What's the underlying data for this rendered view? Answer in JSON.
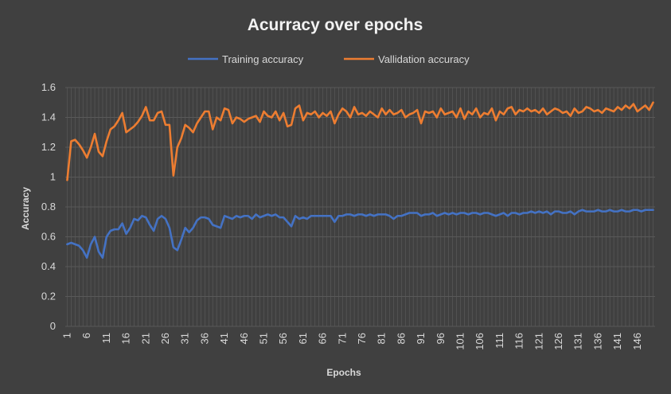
{
  "chart_data": {
    "type": "line",
    "title": "Acurracy over epochs",
    "xlabel": "Epochs",
    "ylabel": "Accuracy",
    "ylim": [
      0,
      1.6
    ],
    "yticks": [
      "0",
      "0.2",
      "0.4",
      "0.6",
      "0.8",
      "1",
      "1.2",
      "1.4",
      "1.6"
    ],
    "xticks": [
      "1",
      "6",
      "11",
      "16",
      "21",
      "26",
      "31",
      "36",
      "41",
      "46",
      "51",
      "56",
      "61",
      "66",
      "71",
      "76",
      "81",
      "86",
      "91",
      "96",
      "101",
      "106",
      "111",
      "116",
      "121",
      "126",
      "131",
      "136",
      "141",
      "146"
    ],
    "grid": true,
    "legend_position": "top",
    "x": [
      1,
      2,
      3,
      4,
      5,
      6,
      7,
      8,
      9,
      10,
      11,
      12,
      13,
      14,
      15,
      16,
      17,
      18,
      19,
      20,
      21,
      22,
      23,
      24,
      25,
      26,
      27,
      28,
      29,
      30,
      31,
      32,
      33,
      34,
      35,
      36,
      37,
      38,
      39,
      40,
      41,
      42,
      43,
      44,
      45,
      46,
      47,
      48,
      49,
      50,
      51,
      52,
      53,
      54,
      55,
      56,
      57,
      58,
      59,
      60,
      61,
      62,
      63,
      64,
      65,
      66,
      67,
      68,
      69,
      70,
      71,
      72,
      73,
      74,
      75,
      76,
      77,
      78,
      79,
      80,
      81,
      82,
      83,
      84,
      85,
      86,
      87,
      88,
      89,
      90,
      91,
      92,
      93,
      94,
      95,
      96,
      97,
      98,
      99,
      100,
      101,
      102,
      103,
      104,
      105,
      106,
      107,
      108,
      109,
      110,
      111,
      112,
      113,
      114,
      115,
      116,
      117,
      118,
      119,
      120,
      121,
      122,
      123,
      124,
      125,
      126,
      127,
      128,
      129,
      130,
      131,
      132,
      133,
      134,
      135,
      136,
      137,
      138,
      139,
      140,
      141,
      142,
      143,
      144,
      145,
      146,
      147,
      148,
      149,
      150
    ],
    "series": [
      {
        "name": "Training accuracy",
        "color": "#4472c4",
        "values": [
          0.55,
          0.56,
          0.55,
          0.54,
          0.51,
          0.46,
          0.55,
          0.6,
          0.5,
          0.46,
          0.6,
          0.64,
          0.65,
          0.65,
          0.69,
          0.62,
          0.66,
          0.72,
          0.71,
          0.74,
          0.73,
          0.68,
          0.64,
          0.72,
          0.74,
          0.72,
          0.66,
          0.53,
          0.51,
          0.58,
          0.66,
          0.63,
          0.66,
          0.71,
          0.73,
          0.73,
          0.72,
          0.68,
          0.67,
          0.66,
          0.74,
          0.73,
          0.72,
          0.74,
          0.73,
          0.74,
          0.74,
          0.72,
          0.75,
          0.73,
          0.74,
          0.75,
          0.74,
          0.75,
          0.73,
          0.73,
          0.7,
          0.67,
          0.74,
          0.72,
          0.73,
          0.72,
          0.74,
          0.74,
          0.74,
          0.74,
          0.74,
          0.74,
          0.7,
          0.74,
          0.74,
          0.75,
          0.75,
          0.74,
          0.75,
          0.75,
          0.74,
          0.75,
          0.74,
          0.75,
          0.75,
          0.75,
          0.74,
          0.72,
          0.74,
          0.74,
          0.75,
          0.76,
          0.76,
          0.76,
          0.74,
          0.75,
          0.75,
          0.76,
          0.74,
          0.75,
          0.76,
          0.75,
          0.76,
          0.75,
          0.76,
          0.76,
          0.75,
          0.76,
          0.76,
          0.75,
          0.76,
          0.76,
          0.75,
          0.74,
          0.75,
          0.76,
          0.74,
          0.76,
          0.76,
          0.75,
          0.76,
          0.76,
          0.77,
          0.76,
          0.77,
          0.76,
          0.77,
          0.75,
          0.77,
          0.77,
          0.76,
          0.76,
          0.77,
          0.75,
          0.77,
          0.78,
          0.77,
          0.77,
          0.77,
          0.78,
          0.77,
          0.77,
          0.78,
          0.77,
          0.77,
          0.78,
          0.77,
          0.77,
          0.78,
          0.78,
          0.77,
          0.78,
          0.78,
          0.78
        ]
      },
      {
        "name": "Vallidation accuracy",
        "color": "#ed7d31",
        "values": [
          0.98,
          1.24,
          1.25,
          1.22,
          1.18,
          1.13,
          1.2,
          1.29,
          1.17,
          1.14,
          1.24,
          1.32,
          1.34,
          1.38,
          1.43,
          1.3,
          1.32,
          1.34,
          1.37,
          1.41,
          1.47,
          1.38,
          1.38,
          1.43,
          1.44,
          1.35,
          1.35,
          1.01,
          1.2,
          1.26,
          1.35,
          1.33,
          1.3,
          1.36,
          1.4,
          1.44,
          1.44,
          1.32,
          1.4,
          1.38,
          1.46,
          1.45,
          1.36,
          1.4,
          1.39,
          1.37,
          1.39,
          1.4,
          1.41,
          1.37,
          1.44,
          1.41,
          1.4,
          1.44,
          1.38,
          1.43,
          1.34,
          1.35,
          1.46,
          1.48,
          1.38,
          1.43,
          1.42,
          1.44,
          1.4,
          1.43,
          1.41,
          1.44,
          1.36,
          1.42,
          1.46,
          1.44,
          1.4,
          1.47,
          1.42,
          1.43,
          1.41,
          1.44,
          1.42,
          1.4,
          1.46,
          1.42,
          1.45,
          1.42,
          1.43,
          1.45,
          1.4,
          1.42,
          1.43,
          1.45,
          1.36,
          1.44,
          1.43,
          1.44,
          1.4,
          1.46,
          1.42,
          1.43,
          1.44,
          1.4,
          1.46,
          1.39,
          1.44,
          1.42,
          1.46,
          1.4,
          1.43,
          1.42,
          1.46,
          1.38,
          1.44,
          1.42,
          1.46,
          1.47,
          1.42,
          1.45,
          1.44,
          1.46,
          1.44,
          1.45,
          1.43,
          1.46,
          1.42,
          1.44,
          1.46,
          1.45,
          1.43,
          1.44,
          1.41,
          1.46,
          1.43,
          1.44,
          1.47,
          1.46,
          1.44,
          1.45,
          1.43,
          1.46,
          1.45,
          1.44,
          1.47,
          1.45,
          1.48,
          1.46,
          1.49,
          1.44,
          1.46,
          1.48,
          1.45,
          1.5
        ]
      }
    ]
  }
}
